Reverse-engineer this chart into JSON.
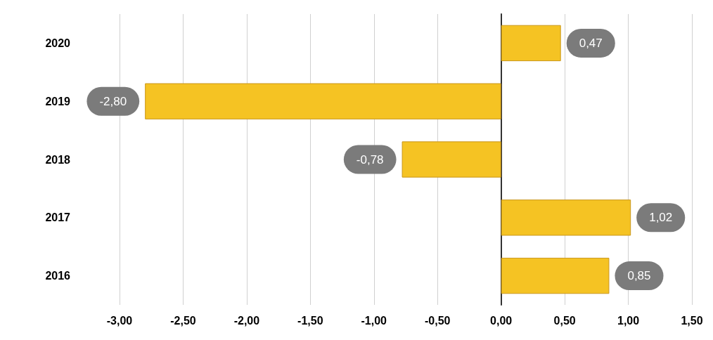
{
  "chart_data": {
    "type": "bar",
    "orientation": "horizontal",
    "categories": [
      "2020",
      "2019",
      "2018",
      "2017",
      "2016"
    ],
    "values": [
      0.47,
      -2.8,
      -0.78,
      1.02,
      0.85
    ],
    "value_labels": [
      "0,47",
      "-2,80",
      "-0,78",
      "1,02",
      "0,85"
    ],
    "color": "#f5c323",
    "xlim": [
      -3,
      1.5
    ],
    "xticks": [
      {
        "value": -3,
        "label": "-3,00"
      },
      {
        "value": -2.5,
        "label": "-2,50"
      },
      {
        "value": -2,
        "label": "-2,00"
      },
      {
        "value": -1.5,
        "label": "-1,50"
      },
      {
        "value": -1,
        "label": "-1,00"
      },
      {
        "value": -0.5,
        "label": "-0,50"
      },
      {
        "value": 0,
        "label": "0,00"
      },
      {
        "value": 0.5,
        "label": "0,50"
      },
      {
        "value": 1,
        "label": "1,00"
      },
      {
        "value": 1.5,
        "label": "1,50"
      }
    ],
    "grid": "x"
  }
}
